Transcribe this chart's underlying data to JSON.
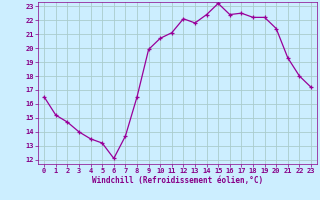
{
  "x": [
    0,
    1,
    2,
    3,
    4,
    5,
    6,
    7,
    8,
    9,
    10,
    11,
    12,
    13,
    14,
    15,
    16,
    17,
    18,
    19,
    20,
    21,
    22,
    23
  ],
  "y": [
    16.5,
    15.2,
    14.7,
    14.0,
    13.5,
    13.2,
    12.1,
    13.7,
    16.5,
    19.9,
    20.7,
    21.1,
    22.1,
    21.8,
    22.4,
    23.2,
    22.4,
    22.5,
    22.2,
    22.2,
    21.4,
    19.3,
    18.0,
    17.2
  ],
  "xlabel": "Windchill (Refroidissement éolien,°C)",
  "xlim_min": -0.5,
  "xlim_max": 23.5,
  "ylim_min": 11.7,
  "ylim_max": 23.3,
  "yticks": [
    12,
    13,
    14,
    15,
    16,
    17,
    18,
    19,
    20,
    21,
    22,
    23
  ],
  "xticks": [
    0,
    1,
    2,
    3,
    4,
    5,
    6,
    7,
    8,
    9,
    10,
    11,
    12,
    13,
    14,
    15,
    16,
    17,
    18,
    19,
    20,
    21,
    22,
    23
  ],
  "line_color": "#990099",
  "marker": "+",
  "markersize": 3.5,
  "linewidth": 0.9,
  "bg_color": "#cceeff",
  "grid_color": "#aacccc",
  "label_color": "#880088",
  "tick_fontsize": 5.0,
  "xlabel_fontsize": 5.5
}
